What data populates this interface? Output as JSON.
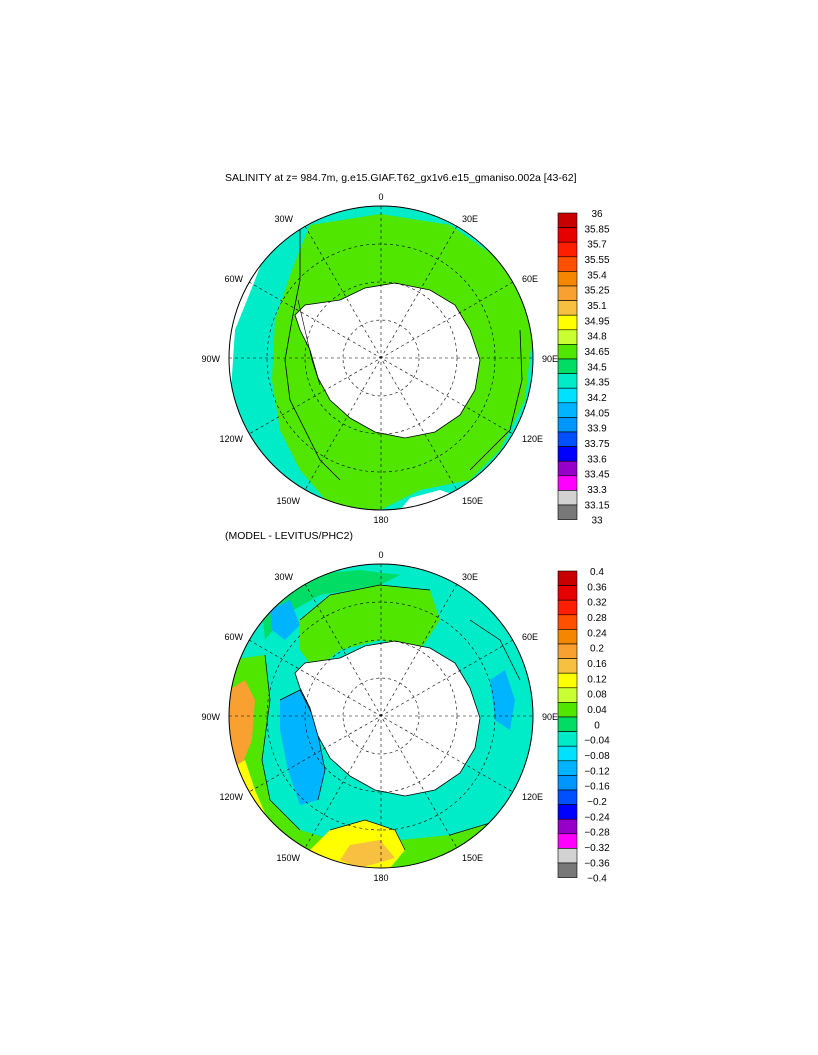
{
  "panels": [
    {
      "title": "SALINITY at z= 984.7m, g.e15.GIAF.T62_gx1v6.e15_gmaniso.002a [43-62]",
      "lon_labels": {
        "top": "0",
        "top_left": "30W",
        "top_right": "30E",
        "upper_left": "60W",
        "upper_right": "60E",
        "left": "90W",
        "right": "90E",
        "lower_left": "120W",
        "lower_right": "120E",
        "bottom_left": "150W",
        "bottom_right": "150E",
        "bottom": "180"
      },
      "colorbar": {
        "labels": [
          "36",
          "35.85",
          "35.7",
          "35.55",
          "35.4",
          "35.25",
          "35.1",
          "34.95",
          "34.8",
          "34.65",
          "34.5",
          "34.35",
          "34.2",
          "34.05",
          "33.9",
          "33.75",
          "33.6",
          "33.45",
          "33.3",
          "33.15",
          "33"
        ],
        "colors": [
          "#c80000",
          "#e60000",
          "#ff1e00",
          "#ff5000",
          "#f58700",
          "#f8a030",
          "#f8c040",
          "#ffff00",
          "#c8ff32",
          "#50e600",
          "#00dc64",
          "#00ebc8",
          "#00e1ff",
          "#00b4ff",
          "#0096ff",
          "#0050ff",
          "#0000ff",
          "#9600c8",
          "#ff00ff",
          "#d2d2d2",
          "#787878"
        ]
      }
    },
    {
      "title": "(MODEL - LEVITUS/PHC2)",
      "lon_labels": {
        "top": "0",
        "top_left": "30W",
        "top_right": "30E",
        "upper_left": "60W",
        "upper_right": "60E",
        "left": "90W",
        "right": "90E",
        "lower_left": "120W",
        "lower_right": "120E",
        "bottom_left": "150W",
        "bottom_right": "150E",
        "bottom": "180"
      },
      "colorbar": {
        "labels": [
          "0.4",
          "0.36",
          "0.32",
          "0.28",
          "0.24",
          "0.2",
          "0.16",
          "0.12",
          "0.08",
          "0.04",
          "0",
          "−0.04",
          "−0.08",
          "−0.12",
          "−0.16",
          "−0.2",
          "−0.24",
          "−0.28",
          "−0.32",
          "−0.36",
          "−0.4"
        ],
        "colors": [
          "#c80000",
          "#e60000",
          "#ff1e00",
          "#ff5000",
          "#f58700",
          "#f8a030",
          "#f8c040",
          "#ffff00",
          "#c8ff32",
          "#50e600",
          "#00dc64",
          "#00ebc8",
          "#00e1ff",
          "#00b4ff",
          "#0096ff",
          "#0050ff",
          "#0000ff",
          "#9600c8",
          "#ff00ff",
          "#d2d2d2",
          "#787878"
        ]
      }
    }
  ]
}
